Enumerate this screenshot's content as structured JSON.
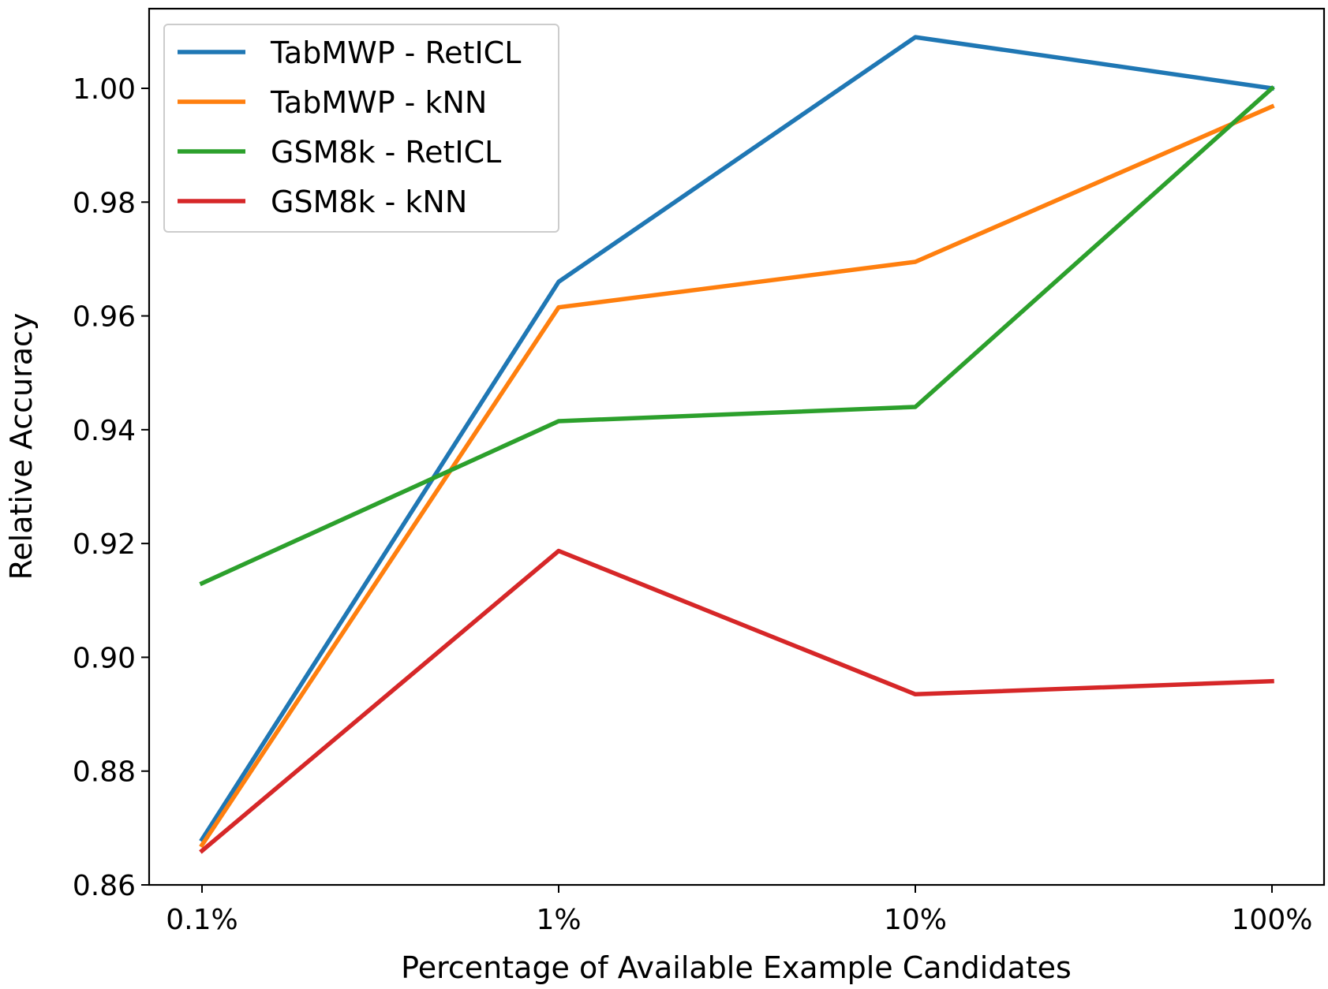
{
  "chart_data": {
    "type": "line",
    "title": "",
    "xlabel": "Percentage of Available Example Candidates",
    "ylabel": "Relative Accuracy",
    "categories": [
      "0.1%",
      "1%",
      "10%",
      "100%"
    ],
    "ylim": [
      0.86,
      1.014
    ],
    "yticks": [
      0.86,
      0.88,
      0.9,
      0.92,
      0.94,
      0.96,
      0.98,
      1.0
    ],
    "ytick_labels": [
      "0.86",
      "0.88",
      "0.90",
      "0.92",
      "0.94",
      "0.96",
      "0.98",
      "1.00"
    ],
    "legend_position": "top-left",
    "grid": false,
    "series": [
      {
        "name": "TabMWP - RetICL",
        "color": "#1f77b4",
        "values": [
          0.868,
          0.966,
          1.009,
          1.0
        ]
      },
      {
        "name": "TabMWP - kNN",
        "color": "#ff7f0e",
        "values": [
          0.867,
          0.9615,
          0.9695,
          0.9968
        ]
      },
      {
        "name": "GSM8k - RetICL",
        "color": "#2ca02c",
        "values": [
          0.913,
          0.9415,
          0.944,
          1.0
        ]
      },
      {
        "name": "GSM8k - kNN",
        "color": "#d62728",
        "values": [
          0.866,
          0.9187,
          0.8935,
          0.8958
        ]
      }
    ]
  }
}
